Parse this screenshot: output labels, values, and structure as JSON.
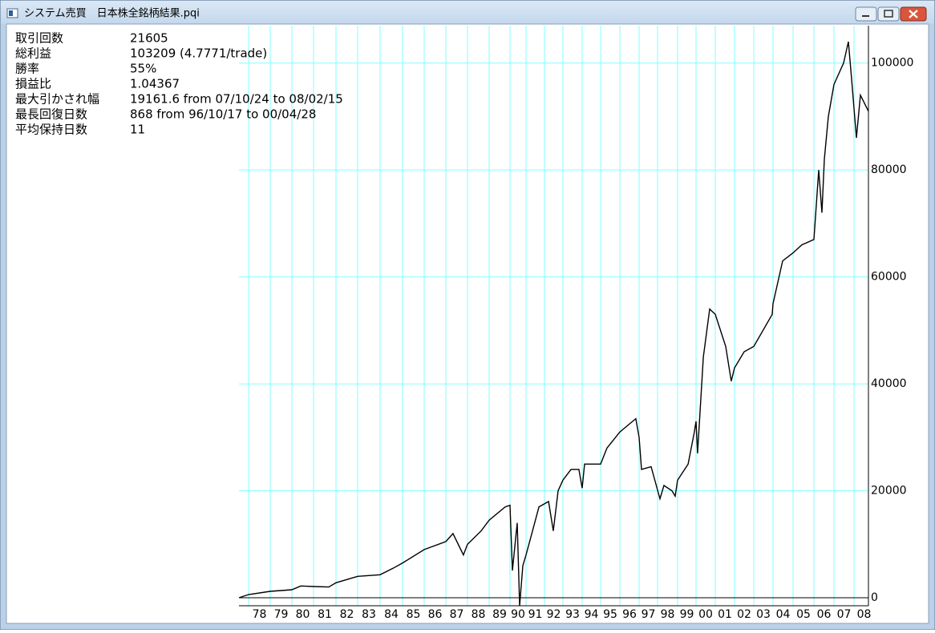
{
  "window_title": "システム売買　日本株全銘柄結果.pqi",
  "stats": [
    {
      "label": "取引回数",
      "value": "21605"
    },
    {
      "label": "総利益",
      "value": "103209 (4.7771/trade)"
    },
    {
      "label": "勝率",
      "value": "55%"
    },
    {
      "label": "損益比",
      "value": "1.04367"
    },
    {
      "label": "最大引かされ幅",
      "value": "19161.6 from 07/10/24 to 08/02/15"
    },
    {
      "label": "最長回復日数",
      "value": "868 from 96/10/17 to 00/04/28"
    },
    {
      "label": "平均保持日数",
      "value": "11"
    }
  ],
  "chart_data": {
    "type": "line",
    "ylim": [
      -1500,
      107000
    ],
    "yticks": [
      0,
      20000,
      40000,
      60000,
      80000,
      100000
    ],
    "xticks": [
      {
        "value": 1978,
        "label": "78"
      },
      {
        "value": 1979,
        "label": "79"
      },
      {
        "value": 1980,
        "label": "80"
      },
      {
        "value": 1981,
        "label": "81"
      },
      {
        "value": 1982,
        "label": "82"
      },
      {
        "value": 1983,
        "label": "83"
      },
      {
        "value": 1984,
        "label": "84"
      },
      {
        "value": 1985,
        "label": "85"
      },
      {
        "value": 1986,
        "label": "86"
      },
      {
        "value": 1987,
        "label": "87"
      },
      {
        "value": 1988,
        "label": "88"
      },
      {
        "value": 1989,
        "label": "89"
      },
      {
        "value": 1990,
        "label": "90"
      },
      {
        "value": 1991,
        "label": "91"
      },
      {
        "value": 1992,
        "label": "92"
      },
      {
        "value": 1993,
        "label": "93"
      },
      {
        "value": 1994,
        "label": "94"
      },
      {
        "value": 1995,
        "label": "95"
      },
      {
        "value": 1996,
        "label": "96"
      },
      {
        "value": 1997,
        "label": "97"
      },
      {
        "value": 1998,
        "label": "98"
      },
      {
        "value": 1999,
        "label": "99"
      },
      {
        "value": 2000,
        "label": "00"
      },
      {
        "value": 2001,
        "label": "01"
      },
      {
        "value": 2002,
        "label": "02"
      },
      {
        "value": 2003,
        "label": "03"
      },
      {
        "value": 2004,
        "label": "04"
      },
      {
        "value": 2005,
        "label": "05"
      },
      {
        "value": 2006,
        "label": "06"
      },
      {
        "value": 2007,
        "label": "07"
      },
      {
        "value": 2008,
        "label": "08"
      }
    ],
    "grid": true,
    "grid_color": "#80ffff",
    "series": [
      {
        "color": "#000000",
        "x": [
          1977.56,
          1978.0,
          1979.0,
          1980.0,
          1980.41,
          1981.0,
          1981.68,
          1982.0,
          1983.0,
          1984.0,
          1984.57,
          1985.0,
          1986.0,
          1987.0,
          1987.33,
          1987.81,
          1988.0,
          1988.63,
          1989.0,
          1989.77,
          1990.0,
          1990.15,
          1990.45,
          1990.6,
          1990.8,
          1991.0,
          1991.39,
          1991.7,
          1992.22,
          1992.48,
          1992.74,
          1993.0,
          1993.42,
          1993.83,
          1994.0,
          1994.13,
          1995.0,
          1995.33,
          1996.0,
          1996.83,
          1997.0,
          1997.13,
          1997.65,
          1998.12,
          1998.32,
          1998.72,
          1998.88,
          1999.0,
          1999.57,
          1999.91,
          2000.0,
          2000.08,
          2000.38,
          2000.71,
          2001.0,
          2001.54,
          2001.83,
          2002.0,
          2002.5,
          2003.0,
          2003.96,
          2004.0,
          2004.48,
          2005.0,
          2005.42,
          2006.0,
          2006.24,
          2006.4,
          2006.52,
          2006.72,
          2007.0,
          2007.48,
          2007.72,
          2007.88,
          2008.12,
          2008.32,
          2008.72
        ],
        "values": [
          0,
          600,
          1200,
          1500,
          2200,
          2100,
          2000,
          2800,
          4000,
          4300,
          5500,
          6500,
          9000,
          10500,
          12000,
          8000,
          10000,
          12500,
          14500,
          17000,
          17300,
          5100,
          14000,
          -1500,
          6000,
          8000,
          13000,
          17000,
          18000,
          12500,
          20000,
          22000,
          24000,
          24000,
          20500,
          25000,
          25000,
          28000,
          31000,
          33500,
          30000,
          24000,
          24500,
          18500,
          21000,
          20000,
          19000,
          22000,
          25000,
          31000,
          33000,
          27000,
          45000,
          54000,
          53000,
          47000,
          40500,
          43000,
          46000,
          47000,
          53000,
          55000,
          63000,
          64500,
          66000,
          67000,
          80000,
          72000,
          82000,
          90000,
          96000,
          100000,
          104000,
          97000,
          86000,
          94000,
          91000
        ]
      }
    ]
  }
}
